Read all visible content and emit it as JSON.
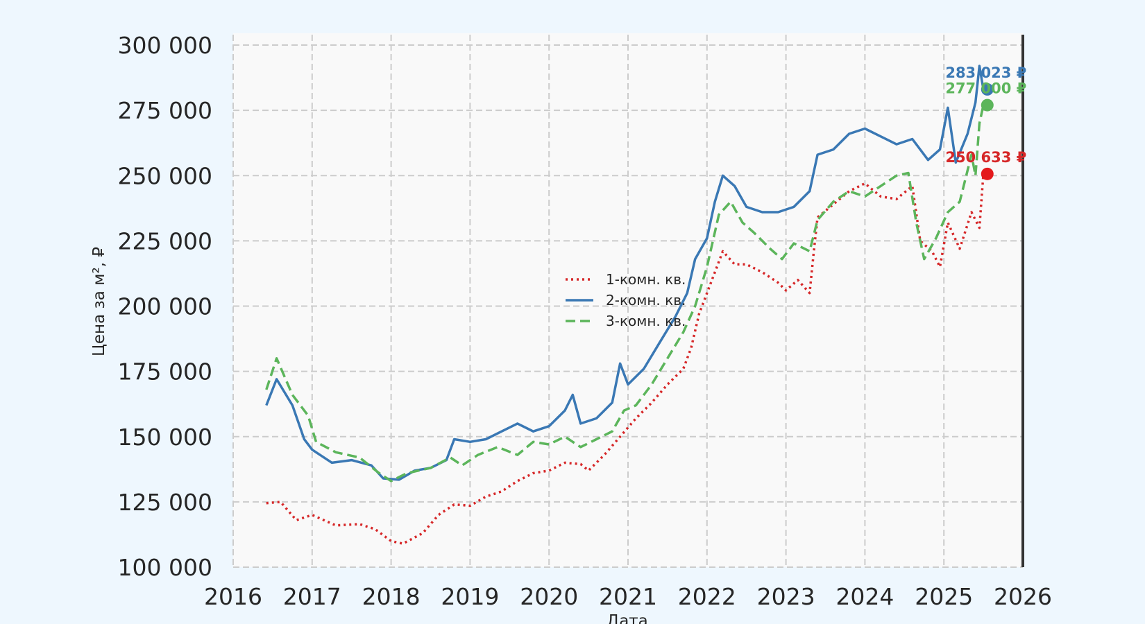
{
  "chart_data": {
    "type": "line",
    "title": "",
    "xlabel": "Дата",
    "ylabel": "Цена за м², ₽",
    "xlim": [
      2016,
      2026
    ],
    "ylim": [
      100000,
      300000
    ],
    "x_ticks": [
      "2016",
      "2017",
      "2018",
      "2019",
      "2020",
      "2021",
      "2022",
      "2023",
      "2024",
      "2025",
      "2026"
    ],
    "y_ticks": [
      "100 000",
      "125 000",
      "150 000",
      "175 000",
      "200 000",
      "225 000",
      "250 000",
      "275 000",
      "300 000"
    ],
    "grid": true,
    "legend_position": "center",
    "series": [
      {
        "name": "1-комн. кв.",
        "color": "#d62728",
        "style": "dotted",
        "points": [
          [
            2016.42,
            124500
          ],
          [
            2016.6,
            125000
          ],
          [
            2016.8,
            118000
          ],
          [
            2017.0,
            120000
          ],
          [
            2017.3,
            116000
          ],
          [
            2017.6,
            116500
          ],
          [
            2017.8,
            114500
          ],
          [
            2018.0,
            110000
          ],
          [
            2018.15,
            109000
          ],
          [
            2018.4,
            113000
          ],
          [
            2018.6,
            120000
          ],
          [
            2018.8,
            124000
          ],
          [
            2019.0,
            123500
          ],
          [
            2019.2,
            127000
          ],
          [
            2019.4,
            129000
          ],
          [
            2019.6,
            133000
          ],
          [
            2019.8,
            136000
          ],
          [
            2020.0,
            137000
          ],
          [
            2020.2,
            140000
          ],
          [
            2020.4,
            139500
          ],
          [
            2020.5,
            137000
          ],
          [
            2020.7,
            143000
          ],
          [
            2020.9,
            150000
          ],
          [
            2021.1,
            157000
          ],
          [
            2021.3,
            163000
          ],
          [
            2021.5,
            170000
          ],
          [
            2021.7,
            176000
          ],
          [
            2021.8,
            184000
          ],
          [
            2021.9,
            197000
          ],
          [
            2022.0,
            205000
          ],
          [
            2022.1,
            213000
          ],
          [
            2022.2,
            221000
          ],
          [
            2022.35,
            216000
          ],
          [
            2022.5,
            216000
          ],
          [
            2022.7,
            213000
          ],
          [
            2022.9,
            209000
          ],
          [
            2023.0,
            206000
          ],
          [
            2023.15,
            210000
          ],
          [
            2023.3,
            205000
          ],
          [
            2023.35,
            220000
          ],
          [
            2023.4,
            234000
          ],
          [
            2023.6,
            239000
          ],
          [
            2023.8,
            244000
          ],
          [
            2024.0,
            247000
          ],
          [
            2024.2,
            242000
          ],
          [
            2024.4,
            241000
          ],
          [
            2024.6,
            246000
          ],
          [
            2024.7,
            225000
          ],
          [
            2024.85,
            221000
          ],
          [
            2024.95,
            215000
          ],
          [
            2025.05,
            232000
          ],
          [
            2025.2,
            222000
          ],
          [
            2025.35,
            236000
          ],
          [
            2025.45,
            230000
          ],
          [
            2025.5,
            250633
          ]
        ]
      },
      {
        "name": "2-комн. кв.",
        "color": "#3a78b4",
        "style": "solid",
        "points": [
          [
            2016.42,
            162000
          ],
          [
            2016.55,
            172000
          ],
          [
            2016.75,
            162000
          ],
          [
            2016.9,
            149000
          ],
          [
            2017.0,
            145000
          ],
          [
            2017.25,
            140000
          ],
          [
            2017.5,
            141000
          ],
          [
            2017.75,
            139000
          ],
          [
            2017.9,
            134000
          ],
          [
            2018.1,
            133500
          ],
          [
            2018.3,
            137000
          ],
          [
            2018.5,
            138000
          ],
          [
            2018.7,
            141000
          ],
          [
            2018.8,
            149000
          ],
          [
            2019.0,
            148000
          ],
          [
            2019.2,
            149000
          ],
          [
            2019.4,
            152000
          ],
          [
            2019.6,
            155000
          ],
          [
            2019.8,
            152000
          ],
          [
            2020.0,
            154000
          ],
          [
            2020.2,
            160000
          ],
          [
            2020.3,
            166000
          ],
          [
            2020.4,
            155000
          ],
          [
            2020.6,
            157000
          ],
          [
            2020.8,
            163000
          ],
          [
            2020.9,
            178000
          ],
          [
            2021.0,
            170000
          ],
          [
            2021.2,
            176000
          ],
          [
            2021.4,
            186000
          ],
          [
            2021.6,
            196000
          ],
          [
            2021.75,
            205000
          ],
          [
            2021.85,
            218000
          ],
          [
            2022.0,
            226000
          ],
          [
            2022.1,
            240000
          ],
          [
            2022.2,
            250000
          ],
          [
            2022.35,
            246000
          ],
          [
            2022.5,
            238000
          ],
          [
            2022.7,
            236000
          ],
          [
            2022.9,
            236000
          ],
          [
            2023.1,
            238000
          ],
          [
            2023.3,
            244000
          ],
          [
            2023.4,
            258000
          ],
          [
            2023.6,
            260000
          ],
          [
            2023.8,
            266000
          ],
          [
            2024.0,
            268000
          ],
          [
            2024.2,
            265000
          ],
          [
            2024.4,
            262000
          ],
          [
            2024.6,
            264000
          ],
          [
            2024.8,
            256000
          ],
          [
            2024.95,
            260000
          ],
          [
            2025.05,
            276000
          ],
          [
            2025.15,
            255000
          ],
          [
            2025.3,
            266000
          ],
          [
            2025.4,
            278000
          ],
          [
            2025.45,
            292000
          ],
          [
            2025.5,
            283023
          ]
        ]
      },
      {
        "name": "3-комн. кв.",
        "color": "#5cb55b",
        "style": "dashed",
        "points": [
          [
            2016.42,
            168000
          ],
          [
            2016.55,
            180000
          ],
          [
            2016.75,
            166000
          ],
          [
            2016.95,
            158000
          ],
          [
            2017.05,
            148000
          ],
          [
            2017.3,
            144000
          ],
          [
            2017.6,
            142000
          ],
          [
            2017.85,
            136000
          ],
          [
            2018.0,
            133000
          ],
          [
            2018.2,
            136000
          ],
          [
            2018.5,
            138000
          ],
          [
            2018.75,
            142000
          ],
          [
            2018.9,
            139000
          ],
          [
            2019.1,
            143000
          ],
          [
            2019.35,
            146000
          ],
          [
            2019.6,
            143000
          ],
          [
            2019.8,
            148000
          ],
          [
            2020.0,
            147000
          ],
          [
            2020.2,
            150000
          ],
          [
            2020.4,
            146000
          ],
          [
            2020.6,
            149000
          ],
          [
            2020.8,
            152000
          ],
          [
            2020.95,
            160000
          ],
          [
            2021.1,
            162000
          ],
          [
            2021.3,
            170000
          ],
          [
            2021.5,
            180000
          ],
          [
            2021.7,
            190000
          ],
          [
            2021.85,
            200000
          ],
          [
            2022.0,
            215000
          ],
          [
            2022.15,
            235000
          ],
          [
            2022.3,
            240000
          ],
          [
            2022.45,
            232000
          ],
          [
            2022.6,
            228000
          ],
          [
            2022.8,
            222000
          ],
          [
            2022.95,
            218000
          ],
          [
            2023.1,
            224000
          ],
          [
            2023.3,
            221000
          ],
          [
            2023.4,
            233000
          ],
          [
            2023.6,
            240000
          ],
          [
            2023.8,
            244000
          ],
          [
            2024.0,
            242000
          ],
          [
            2024.2,
            246000
          ],
          [
            2024.4,
            250000
          ],
          [
            2024.55,
            251000
          ],
          [
            2024.65,
            232000
          ],
          [
            2024.75,
            218000
          ],
          [
            2024.9,
            226000
          ],
          [
            2025.05,
            236000
          ],
          [
            2025.2,
            240000
          ],
          [
            2025.35,
            258000
          ],
          [
            2025.4,
            250000
          ],
          [
            2025.45,
            270000
          ],
          [
            2025.5,
            277000
          ]
        ]
      }
    ],
    "end_labels": [
      {
        "text": "283 023 ₽",
        "value": 283023,
        "color": "#3a78b4"
      },
      {
        "text": "277 000 ₽",
        "value": 277000,
        "color": "#5cb55b"
      },
      {
        "text": "250 633 ₽",
        "value": 250633,
        "color": "#d62728"
      }
    ],
    "end_x": 2025.55,
    "marker_colors": [
      "#3a78b4",
      "#5cb55b",
      "#e41a1c"
    ]
  }
}
